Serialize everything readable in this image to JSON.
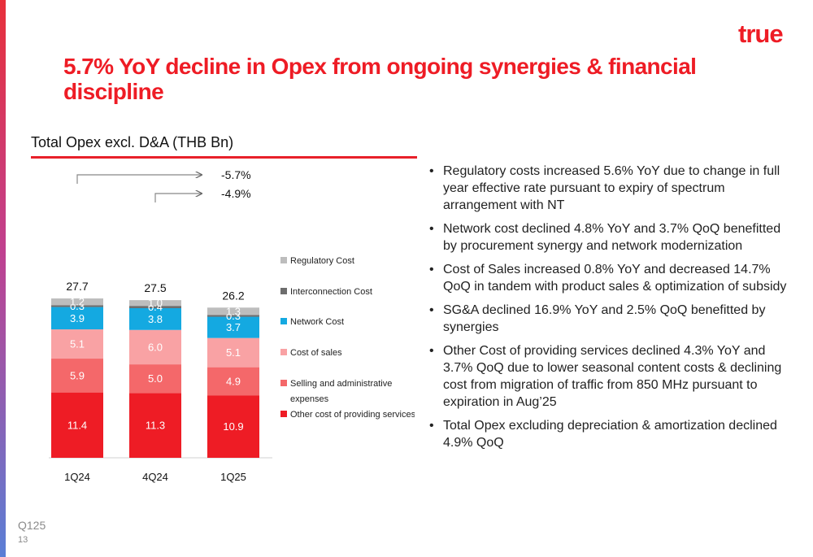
{
  "brand": {
    "logo_text": "true",
    "accent": "#ee1c25"
  },
  "header": {
    "title": "5.7% YoY decline in Opex from ongoing synergies & financial discipline"
  },
  "chart_title": "Total Opex excl. D&A (THB Bn)",
  "chart_data": {
    "type": "bar",
    "stacked": true,
    "categories": [
      "1Q24",
      "4Q24",
      "1Q25"
    ],
    "totals": [
      "27.7",
      "27.5",
      "26.2"
    ],
    "series": [
      {
        "name": "Other cost of providing services",
        "color": "#ee1c25",
        "values": [
          11.4,
          11.3,
          10.9
        ]
      },
      {
        "name": "Selling and administrative expenses",
        "color": "#f4686a",
        "values": [
          5.9,
          5.0,
          4.9
        ]
      },
      {
        "name": "Cost of sales",
        "color": "#f9a2a4",
        "values": [
          5.1,
          6.0,
          5.1
        ]
      },
      {
        "name": "Network Cost",
        "color": "#14a9e1",
        "values": [
          3.9,
          3.8,
          3.7
        ]
      },
      {
        "name": "Interconnection Cost",
        "color": "#6d6d6d",
        "values": [
          0.3,
          0.4,
          0.3
        ]
      },
      {
        "name": "Regulatory Cost",
        "color": "#bdbdbd",
        "values": [
          1.2,
          1.0,
          1.3
        ]
      }
    ],
    "comparisons": [
      {
        "label": "-5.7%",
        "from": "1Q24",
        "to": "1Q25"
      },
      {
        "label": "-4.9%",
        "from": "4Q24",
        "to": "1Q25"
      }
    ],
    "legend": "right",
    "grid": false
  },
  "bullets": [
    "Regulatory costs increased 5.6% YoY due to change in full year effective rate pursuant to expiry of spectrum arrangement with NT",
    "Network cost declined 4.8% YoY and 3.7% QoQ benefitted by procurement synergy and network modernization",
    "Cost of Sales increased 0.8% YoY and decreased 14.7% QoQ in tandem with product sales & optimization of subsidy",
    "SG&A declined 16.9% YoY and 2.5% QoQ benefitted by synergies",
    "Other Cost of providing services declined 4.3% YoY and 3.7% QoQ due to lower seasonal content costs & declining cost from migration of traffic from 850 MHz pursuant to expiration in Aug’25",
    "Total Opex excluding depreciation & amortization declined 4.9% QoQ"
  ],
  "bullet_glyph": "•",
  "footer": {
    "period": "Q125",
    "page": "13"
  }
}
